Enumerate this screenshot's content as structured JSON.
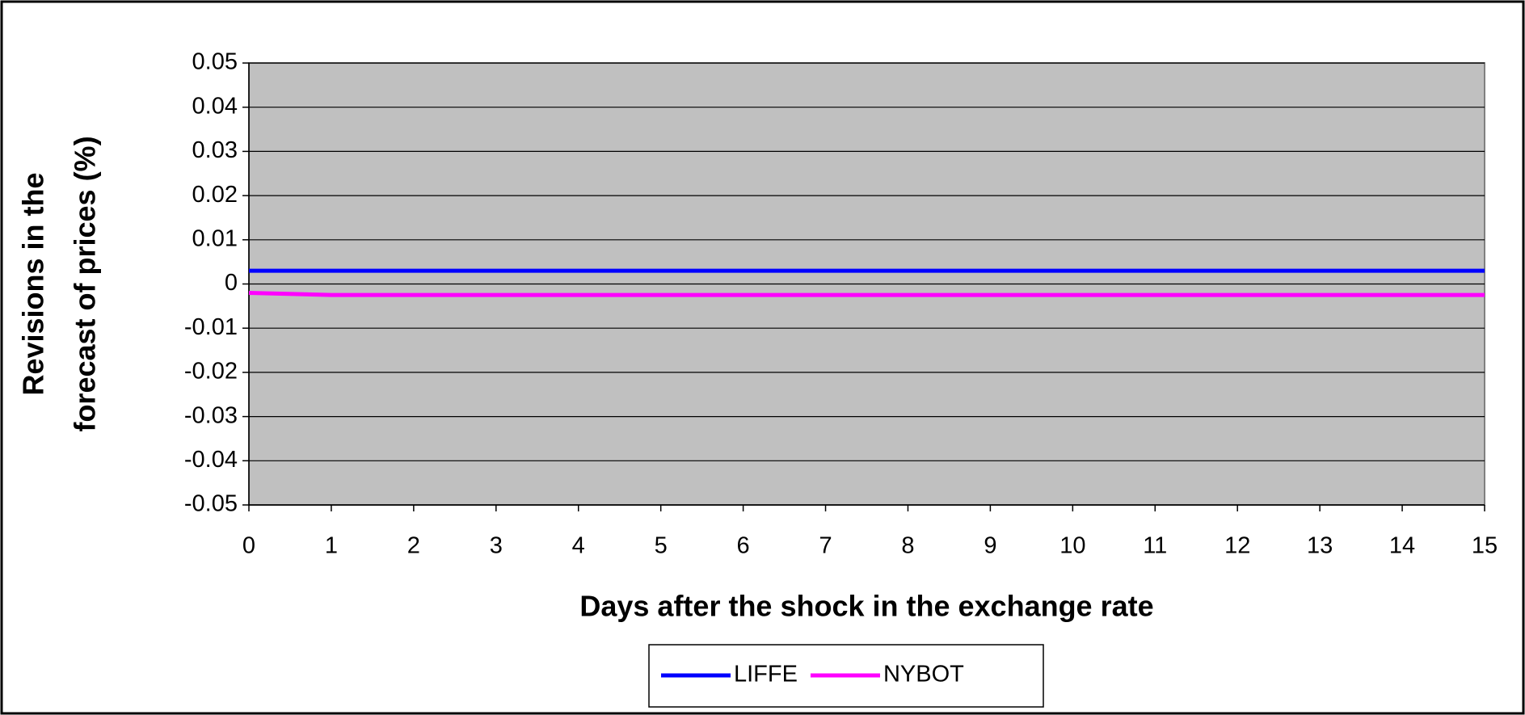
{
  "chart_data": {
    "type": "line",
    "xlabel": "Days after the shock in the exchange rate",
    "ylabel": [
      "Revisions in the",
      "forecast of prices (%)"
    ],
    "x": [
      0,
      1,
      2,
      3,
      4,
      5,
      6,
      7,
      8,
      9,
      10,
      11,
      12,
      13,
      14,
      15
    ],
    "series": [
      {
        "name": "LIFFE",
        "color": "#0000ff",
        "values": [
          0.003,
          0.003,
          0.003,
          0.003,
          0.003,
          0.003,
          0.003,
          0.003,
          0.003,
          0.003,
          0.003,
          0.003,
          0.003,
          0.003,
          0.003,
          0.003
        ]
      },
      {
        "name": "NYBOT",
        "color": "#ff00ff",
        "values": [
          -0.002,
          -0.0025,
          -0.0025,
          -0.0025,
          -0.0025,
          -0.0025,
          -0.0025,
          -0.0025,
          -0.0025,
          -0.0025,
          -0.0025,
          -0.0025,
          -0.0025,
          -0.0025,
          -0.0025,
          -0.0025
        ]
      }
    ],
    "xlim": [
      0,
      15
    ],
    "xticks": [
      0,
      1,
      2,
      3,
      4,
      5,
      6,
      7,
      8,
      9,
      10,
      11,
      12,
      13,
      14,
      15
    ],
    "ylim": [
      -0.05,
      0.05
    ],
    "yticks": [
      -0.05,
      -0.04,
      -0.03,
      -0.02,
      -0.01,
      0,
      0.01,
      0.02,
      0.03,
      0.04,
      0.05
    ],
    "grid": true,
    "legend": "bottom",
    "plot_background": "#c0c0c0"
  }
}
